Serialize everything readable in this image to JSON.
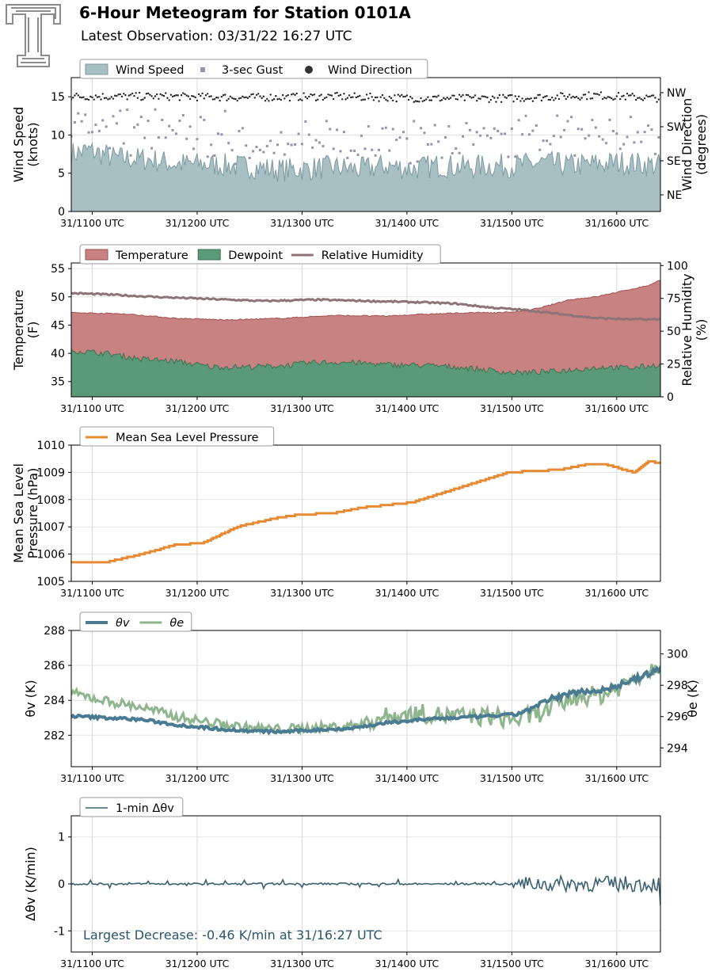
{
  "header": {
    "title": "6-Hour Meteogram for Station 0101A",
    "subtitle": "Latest Observation: 03/31/22 16:27 UTC"
  },
  "time_axis": {
    "start_min": 0,
    "end_min": 337,
    "ticks": [
      {
        "min": 12,
        "label": "31/1100 UTC"
      },
      {
        "min": 72,
        "label": "31/1200 UTC"
      },
      {
        "min": 132,
        "label": "31/1300 UTC"
      },
      {
        "min": 192,
        "label": "31/1400 UTC"
      },
      {
        "min": 252,
        "label": "31/1500 UTC"
      },
      {
        "min": 312,
        "label": "31/1600 UTC"
      }
    ]
  },
  "chart_data": [
    {
      "id": "wind",
      "type": "area",
      "ylabel": [
        "Wind Speed",
        "(knots)"
      ],
      "ylim": [
        0,
        17.5
      ],
      "yticks": [
        0,
        5,
        10,
        15
      ],
      "y2label": [
        "Wind Direction",
        "(degrees)"
      ],
      "y2ticks": [
        "NE",
        "SE",
        "SW",
        "NW"
      ],
      "legend": [
        "Wind Speed",
        "3-sec Gust",
        "Wind Direction"
      ],
      "series": [
        {
          "name": "Wind Speed",
          "color": "#a8bfc4",
          "line": "#7c9aa0",
          "anchors": [
            [
              0,
              7.5
            ],
            [
              10,
              8
            ],
            [
              25,
              7
            ],
            [
              45,
              6.8
            ],
            [
              60,
              6.2
            ],
            [
              75,
              6.2
            ],
            [
              90,
              6
            ],
            [
              105,
              5.8
            ],
            [
              120,
              5.4
            ],
            [
              135,
              5.6
            ],
            [
              150,
              5.8
            ],
            [
              165,
              5.5
            ],
            [
              180,
              6
            ],
            [
              195,
              5.6
            ],
            [
              210,
              6
            ],
            [
              225,
              5.8
            ],
            [
              240,
              6
            ],
            [
              255,
              6
            ],
            [
              270,
              6.4
            ],
            [
              285,
              6
            ],
            [
              300,
              6.2
            ],
            [
              315,
              6.4
            ],
            [
              337,
              6
            ]
          ],
          "noise": 1.6
        },
        {
          "name": "3-sec Gust",
          "color": "#9891ad",
          "offset": 3.5,
          "noise": 2.2
        },
        {
          "name": "Wind Direction",
          "color": "#222222",
          "anchors": [
            [
              0,
              305
            ],
            [
              50,
              305
            ],
            [
              100,
              302
            ],
            [
              150,
              305
            ],
            [
              200,
              300
            ],
            [
              250,
              300
            ],
            [
              300,
              308
            ],
            [
              337,
              300
            ]
          ],
          "noise": 10
        }
      ]
    },
    {
      "id": "temp",
      "type": "area",
      "ylabel": [
        "Temperature",
        "(F)"
      ],
      "ylim": [
        32.3,
        56
      ],
      "yticks": [
        35,
        40,
        45,
        50,
        55
      ],
      "y2label": [
        "Relative Humidity",
        "(%)"
      ],
      "y2lim": [
        0,
        102
      ],
      "y2ticks": [
        0,
        25,
        50,
        75,
        100
      ],
      "legend": [
        "Temperature",
        "Dewpoint",
        "Relative Humidity"
      ],
      "series": [
        {
          "name": "Temperature",
          "color": "#c98282",
          "line": "#a24f50",
          "anchors": [
            [
              0,
              47.2
            ],
            [
              30,
              47
            ],
            [
              60,
              46.2
            ],
            [
              90,
              45.9
            ],
            [
              120,
              46.2
            ],
            [
              150,
              46.7
            ],
            [
              180,
              46.6
            ],
            [
              200,
              46.9
            ],
            [
              230,
              47.2
            ],
            [
              245,
              47.2
            ],
            [
              260,
              47.5
            ],
            [
              270,
              48.2
            ],
            [
              285,
              49.5
            ],
            [
              300,
              50
            ],
            [
              315,
              51
            ],
            [
              330,
              52
            ],
            [
              337,
              53
            ]
          ],
          "noise": 0.1
        },
        {
          "name": "Dewpoint",
          "color": "#5a9a78",
          "line": "#3d6f50",
          "anchors": [
            [
              0,
              40.5
            ],
            [
              20,
              40
            ],
            [
              40,
              39
            ],
            [
              60,
              38.6
            ],
            [
              80,
              37.6
            ],
            [
              100,
              37.6
            ],
            [
              120,
              37.8
            ],
            [
              140,
              38.4
            ],
            [
              160,
              38.4
            ],
            [
              180,
              38
            ],
            [
              200,
              37.9
            ],
            [
              220,
              37.6
            ],
            [
              240,
              37
            ],
            [
              250,
              36.6
            ],
            [
              260,
              36.6
            ],
            [
              275,
              36.8
            ],
            [
              290,
              37.2
            ],
            [
              305,
              37.6
            ],
            [
              320,
              37.4
            ],
            [
              337,
              38
            ]
          ],
          "noise": 0.5
        },
        {
          "name": "Relative Humidity",
          "color": "#8c7479",
          "anchors": [
            [
              0,
              79
            ],
            [
              20,
              78
            ],
            [
              50,
              76
            ],
            [
              80,
              74.5
            ],
            [
              110,
              73
            ],
            [
              140,
              74
            ],
            [
              170,
              73
            ],
            [
              200,
              72
            ],
            [
              220,
              71
            ],
            [
              240,
              68
            ],
            [
              260,
              66
            ],
            [
              280,
              63
            ],
            [
              300,
              60
            ],
            [
              320,
              59
            ],
            [
              337,
              59
            ]
          ],
          "noise": 0.6
        }
      ]
    },
    {
      "id": "pressure",
      "type": "line",
      "ylabel": [
        "Mean Sea Level",
        "Pressure (hPa)"
      ],
      "ylim": [
        1005,
        1010
      ],
      "yticks": [
        1005,
        1006,
        1007,
        1008,
        1009,
        1010
      ],
      "legend": [
        "Mean Sea Level Pressure"
      ],
      "series": [
        {
          "name": "Mean Sea Level Pressure",
          "color": "#e68a33",
          "anchors": [
            [
              0,
              1005.7
            ],
            [
              20,
              1005.7
            ],
            [
              40,
              1006
            ],
            [
              60,
              1006.35
            ],
            [
              75,
              1006.4
            ],
            [
              95,
              1007
            ],
            [
              115,
              1007.3
            ],
            [
              130,
              1007.45
            ],
            [
              150,
              1007.5
            ],
            [
              165,
              1007.7
            ],
            [
              180,
              1007.8
            ],
            [
              195,
              1007.9
            ],
            [
              210,
              1008.2
            ],
            [
              230,
              1008.6
            ],
            [
              250,
              1009
            ],
            [
              265,
              1009.05
            ],
            [
              280,
              1009.1
            ],
            [
              295,
              1009.3
            ],
            [
              305,
              1009.3
            ],
            [
              322,
              1009
            ],
            [
              330,
              1009.4
            ],
            [
              337,
              1009.35
            ]
          ],
          "step": 0.1
        }
      ]
    },
    {
      "id": "theta",
      "type": "line",
      "ylabel": [
        "θv (K)"
      ],
      "ylim": [
        280.2,
        288
      ],
      "yticks": [
        282,
        284,
        286,
        288
      ],
      "y2label": [
        "θe (K)"
      ],
      "y2lim": [
        292.8,
        301.5
      ],
      "y2ticks": [
        294,
        296,
        298,
        300
      ],
      "legend": [
        "θv",
        "θe"
      ],
      "series": [
        {
          "name": "θv",
          "color": "#4a7b93",
          "anchors": [
            [
              0,
              283.1
            ],
            [
              20,
              283
            ],
            [
              40,
              282.9
            ],
            [
              60,
              282.6
            ],
            [
              80,
              282.4
            ],
            [
              100,
              282.25
            ],
            [
              120,
              282.2
            ],
            [
              140,
              282.3
            ],
            [
              160,
              282.4
            ],
            [
              180,
              282.7
            ],
            [
              200,
              282.9
            ],
            [
              220,
              283
            ],
            [
              240,
              283.1
            ],
            [
              255,
              283.2
            ],
            [
              265,
              283.6
            ],
            [
              275,
              284.1
            ],
            [
              290,
              284.5
            ],
            [
              305,
              284.6
            ],
            [
              320,
              285.1
            ],
            [
              337,
              285.8
            ]
          ],
          "noise": 0.08
        },
        {
          "name": "θe",
          "color": "#8fb58e",
          "anchors": [
            [
              0,
              297.5
            ],
            [
              20,
              297
            ],
            [
              40,
              296.6
            ],
            [
              60,
              296
            ],
            [
              80,
              295.6
            ],
            [
              100,
              295.3
            ],
            [
              120,
              295.2
            ],
            [
              140,
              295.3
            ],
            [
              160,
              295.4
            ],
            [
              180,
              296
            ],
            [
              200,
              296.2
            ],
            [
              220,
              296
            ],
            [
              240,
              296
            ],
            [
              255,
              295.8
            ],
            [
              270,
              296.3
            ],
            [
              290,
              297.3
            ],
            [
              305,
              297.4
            ],
            [
              320,
              298.3
            ],
            [
              337,
              299.4
            ]
          ],
          "noise": 0.3
        }
      ]
    },
    {
      "id": "dtheta",
      "type": "line",
      "ylabel": [
        "Δθv (K/min)"
      ],
      "ylim": [
        -1.45,
        1.45
      ],
      "yticks": [
        -1,
        0,
        1
      ],
      "legend": [
        "1-min Δθv"
      ],
      "annotation": "Largest Decrease: -0.46 K/min at 31/16:27 UTC",
      "series": [
        {
          "name": "1-min Δθv",
          "color": "#3b6170",
          "noise_early": 0.02,
          "noise_late": 0.17,
          "transition_min": 255,
          "final_value": -0.46
        }
      ]
    }
  ]
}
